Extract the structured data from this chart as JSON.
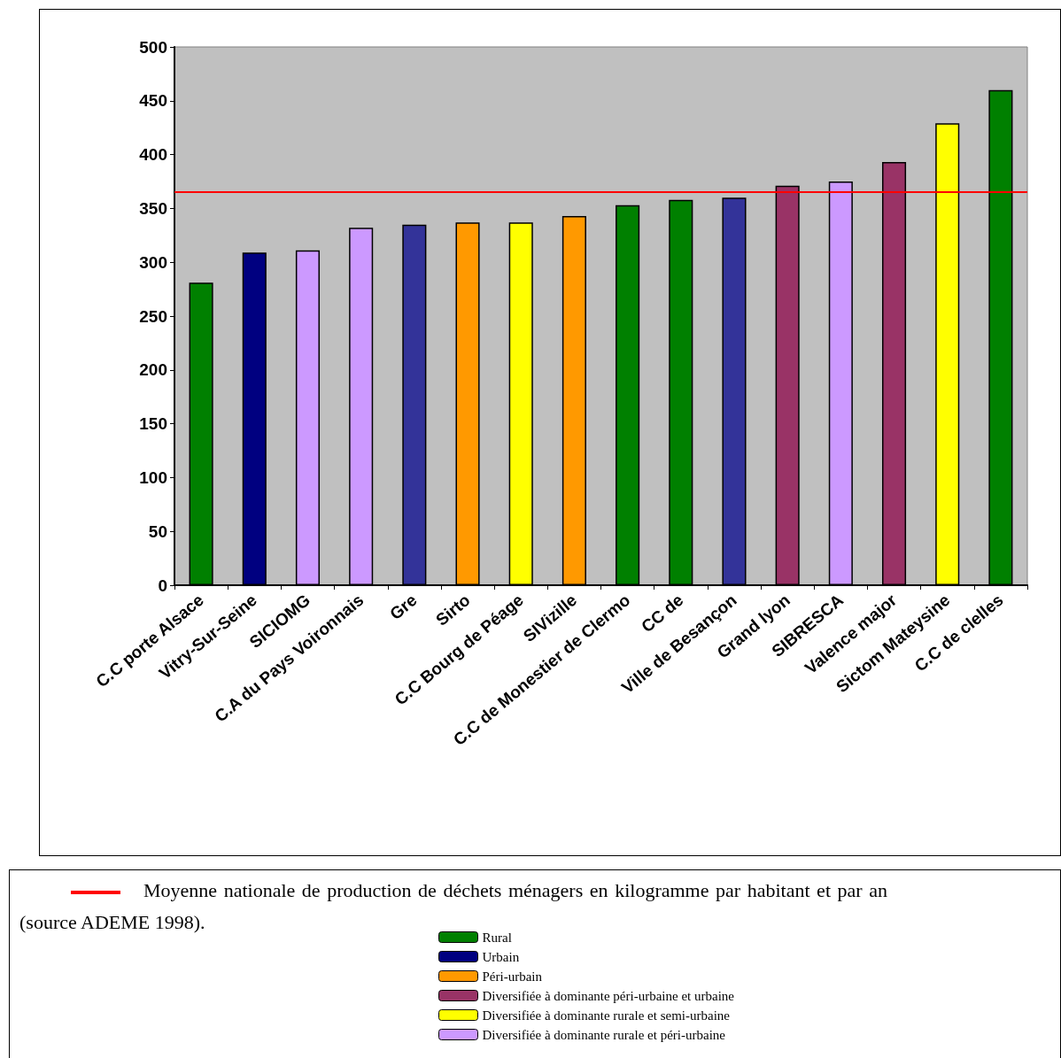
{
  "chart_data": {
    "type": "bar",
    "categories": [
      "C.C porte Alsace",
      "Vitry-Sur-Seine",
      "SICIOMG",
      "C.A du Pays Voironnais",
      "Gre",
      "Sirto",
      "C.C Bourg de Péage",
      "SIVizille",
      "C.C de Monestier de Clermo",
      "CC de",
      "Ville de Besançon",
      "Grand lyon",
      "SIBRESCA",
      "Valence major",
      "Sictom Mateysine",
      "C.C de clelles"
    ],
    "series": [
      {
        "name": "Rural",
        "color": "#008000",
        "values": [
          281,
          null,
          null,
          null,
          null,
          null,
          null,
          null,
          353,
          358,
          null,
          null,
          null,
          null,
          null,
          460
        ]
      },
      {
        "name": "Urbain",
        "color": "#000080",
        "colors": [
          null,
          "#000080",
          null,
          null,
          "#333399",
          null,
          null,
          null,
          null,
          null,
          "#333399",
          null,
          null,
          null,
          null,
          null
        ],
        "values": [
          null,
          309,
          null,
          null,
          335,
          null,
          null,
          null,
          null,
          null,
          360,
          null,
          null,
          null,
          null,
          null
        ]
      },
      {
        "name": "Péri-urbain",
        "color": "#ff9900",
        "values": [
          null,
          null,
          null,
          null,
          null,
          337,
          null,
          343,
          null,
          null,
          null,
          null,
          null,
          null,
          null,
          null
        ]
      },
      {
        "name": "Diversifiée à dominante péri-urbaine et urbaine",
        "color": "#993366",
        "values": [
          null,
          null,
          null,
          null,
          null,
          null,
          null,
          null,
          null,
          null,
          null,
          371,
          null,
          393,
          null,
          null
        ]
      },
      {
        "name": "Diversifiée à dominante rurale et semi-urbaine",
        "color": "#ffff00",
        "values": [
          null,
          null,
          null,
          null,
          null,
          null,
          337,
          null,
          null,
          null,
          null,
          null,
          null,
          null,
          429,
          null
        ]
      },
      {
        "name": "Diversifiée à dominante rurale et péri-urbaine",
        "color": "#cc99ff",
        "values": [
          null,
          null,
          311,
          332,
          null,
          null,
          null,
          null,
          null,
          null,
          null,
          null,
          375,
          null,
          null,
          null
        ]
      }
    ],
    "stacked": true,
    "ylim": [
      0,
      500
    ],
    "yticks": [
      0,
      50,
      100,
      150,
      200,
      250,
      300,
      350,
      400,
      450,
      500
    ],
    "grid": false,
    "legend": "bottom",
    "ref_lines": [
      {
        "axis": "y",
        "value": 365,
        "color": "#ff0000",
        "line_style": "solid",
        "label": "Moyenne nationale de production de déchets ménagers en kilogramme par habitant et par an (source ADEME 1998)."
      }
    ]
  }
}
